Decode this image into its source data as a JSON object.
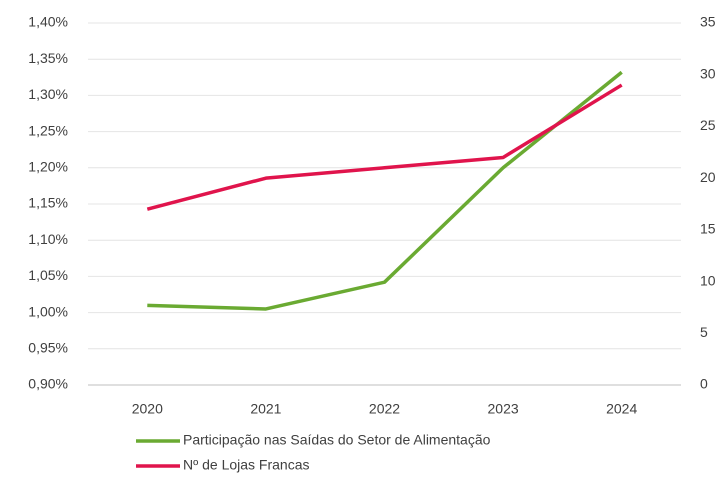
{
  "chart_data": {
    "type": "line",
    "categories": [
      "2020",
      "2021",
      "2022",
      "2023",
      "2024"
    ],
    "series": [
      {
        "name": "Participação nas Saídas do Setor de Alimentação",
        "color": "#6aaa32",
        "values": [
          1.01,
          1.005,
          1.042,
          1.2,
          1.332
        ]
      },
      {
        "name": "Nº de Lojas Francas",
        "color": "#e0144c",
        "axis": "y2",
        "values": [
          17,
          20,
          21,
          22,
          29
        ]
      }
    ],
    "ylim": [
      0.9,
      1.4
    ],
    "yticks": [
      {
        "value": 0.9,
        "label": "0,90%"
      },
      {
        "value": 0.95,
        "label": "0,95%"
      },
      {
        "value": 1.0,
        "label": "1,00%"
      },
      {
        "value": 1.05,
        "label": "1,05%"
      },
      {
        "value": 1.1,
        "label": "1,10%"
      },
      {
        "value": 1.15,
        "label": "1,15%"
      },
      {
        "value": 1.2,
        "label": "1,20%"
      },
      {
        "value": 1.25,
        "label": "1,25%"
      },
      {
        "value": 1.3,
        "label": "1,30%"
      },
      {
        "value": 1.35,
        "label": "1,35%"
      },
      {
        "value": 1.4,
        "label": "1,40%"
      }
    ],
    "y2lim": [
      0,
      35
    ],
    "y2ticks": [
      0,
      5,
      10,
      15,
      20,
      25,
      30,
      35
    ],
    "grid": true,
    "legend": "bottom"
  }
}
